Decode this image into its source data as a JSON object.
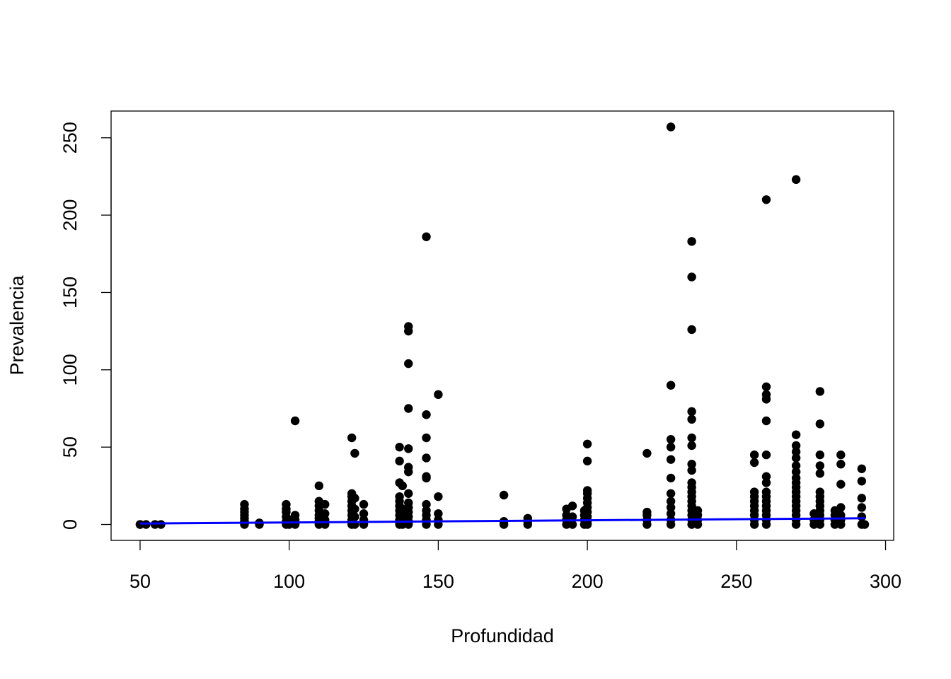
{
  "chart_data": {
    "type": "scatter",
    "x_label": "Profundidad",
    "y_label": "Prevalencia",
    "color": "#000000",
    "x": [
      50,
      50,
      52,
      55,
      57,
      85,
      85,
      85,
      85,
      85,
      85,
      85,
      90,
      90,
      99,
      99,
      99,
      99,
      99,
      99,
      100,
      100,
      102,
      102,
      102,
      102,
      110,
      110,
      110,
      110,
      110,
      110,
      110,
      110,
      112,
      112,
      112,
      112,
      121,
      121,
      121,
      121,
      121,
      121,
      121,
      121,
      121,
      122,
      122,
      122,
      122,
      122,
      125,
      125,
      125,
      125,
      137,
      137,
      137,
      137,
      137,
      137,
      137,
      137,
      137,
      137,
      138,
      138,
      138,
      138,
      140,
      140,
      140,
      140,
      140,
      140,
      140,
      140,
      140,
      140,
      140,
      140,
      140,
      140,
      146,
      146,
      146,
      146,
      146,
      146,
      146,
      146,
      146,
      146,
      146,
      150,
      150,
      150,
      150,
      150,
      172,
      172,
      172,
      180,
      180,
      180,
      193,
      193,
      193,
      193,
      195,
      195,
      195,
      199,
      199,
      199,
      199,
      200,
      200,
      200,
      200,
      200,
      200,
      200,
      200,
      200,
      200,
      200,
      220,
      220,
      220,
      220,
      220,
      228,
      228,
      228,
      228,
      228,
      228,
      228,
      228,
      228,
      228,
      228,
      228,
      235,
      235,
      235,
      235,
      235,
      235,
      235,
      235,
      235,
      235,
      235,
      235,
      235,
      235,
      235,
      235,
      235,
      235,
      235,
      237,
      237,
      237,
      237,
      256,
      256,
      256,
      256,
      256,
      256,
      256,
      256,
      256,
      256,
      260,
      260,
      260,
      260,
      260,
      260,
      260,
      260,
      260,
      260,
      260,
      260,
      260,
      260,
      260,
      260,
      270,
      270,
      270,
      270,
      270,
      270,
      270,
      270,
      270,
      270,
      270,
      270,
      270,
      270,
      270,
      270,
      270,
      270,
      276,
      276,
      276,
      278,
      278,
      278,
      278,
      278,
      278,
      278,
      278,
      278,
      278,
      278,
      278,
      278,
      283,
      283,
      283,
      283,
      285,
      285,
      285,
      285,
      285,
      285,
      285,
      292,
      292,
      292,
      292,
      292,
      292,
      293
    ],
    "values": [
      0,
      0,
      0,
      0,
      0,
      0,
      2,
      4,
      6,
      8,
      10,
      13,
      0,
      1,
      0,
      2,
      5,
      8,
      10,
      13,
      0,
      3,
      0,
      3,
      6,
      67,
      0,
      2,
      4,
      6,
      9,
      12,
      15,
      25,
      0,
      3,
      7,
      13,
      0,
      3,
      6,
      9,
      12,
      15,
      18,
      20,
      56,
      0,
      5,
      10,
      17,
      46,
      0,
      3,
      7,
      13,
      0,
      3,
      6,
      9,
      12,
      15,
      18,
      27,
      41,
      50,
      0,
      5,
      10,
      25,
      0,
      2,
      5,
      8,
      11,
      14,
      20,
      34,
      37,
      49,
      75,
      104,
      125,
      128,
      0,
      3,
      6,
      9,
      13,
      30,
      31,
      43,
      56,
      71,
      186,
      0,
      3,
      7,
      18,
      84,
      0,
      2,
      19,
      0,
      2,
      4,
      0,
      3,
      6,
      10,
      0,
      5,
      12,
      0,
      3,
      6,
      9,
      0,
      2,
      5,
      8,
      11,
      14,
      17,
      20,
      22,
      41,
      52,
      0,
      3,
      6,
      8,
      46,
      0,
      3,
      7,
      11,
      15,
      20,
      30,
      42,
      50,
      55,
      90,
      257,
      0,
      3,
      6,
      9,
      12,
      15,
      18,
      21,
      24,
      27,
      35,
      39,
      51,
      56,
      68,
      73,
      126,
      160,
      183,
      0,
      3,
      6,
      9,
      0,
      3,
      6,
      9,
      12,
      15,
      18,
      21,
      40,
      45,
      0,
      3,
      6,
      9,
      12,
      15,
      18,
      21,
      27,
      31,
      45,
      67,
      81,
      84,
      89,
      210,
      0,
      3,
      6,
      9,
      12,
      15,
      18,
      21,
      24,
      27,
      30,
      34,
      38,
      43,
      47,
      51,
      58,
      223,
      0,
      3,
      7,
      0,
      3,
      6,
      9,
      12,
      15,
      18,
      21,
      33,
      38,
      45,
      65,
      86,
      0,
      3,
      6,
      9,
      0,
      3,
      6,
      11,
      26,
      39,
      45,
      0,
      5,
      11,
      17,
      28,
      36,
      0
    ],
    "trend": {
      "x": [
        50,
        293
      ],
      "values": [
        0.6,
        4.0
      ],
      "color": "#0000ff"
    },
    "xlim": [
      40.28,
      302.72
    ],
    "ylim": [
      -10.28,
      267.28
    ],
    "xticks": [
      50,
      100,
      150,
      200,
      250,
      300
    ],
    "yticks": [
      0,
      50,
      100,
      150,
      200,
      250
    ]
  }
}
